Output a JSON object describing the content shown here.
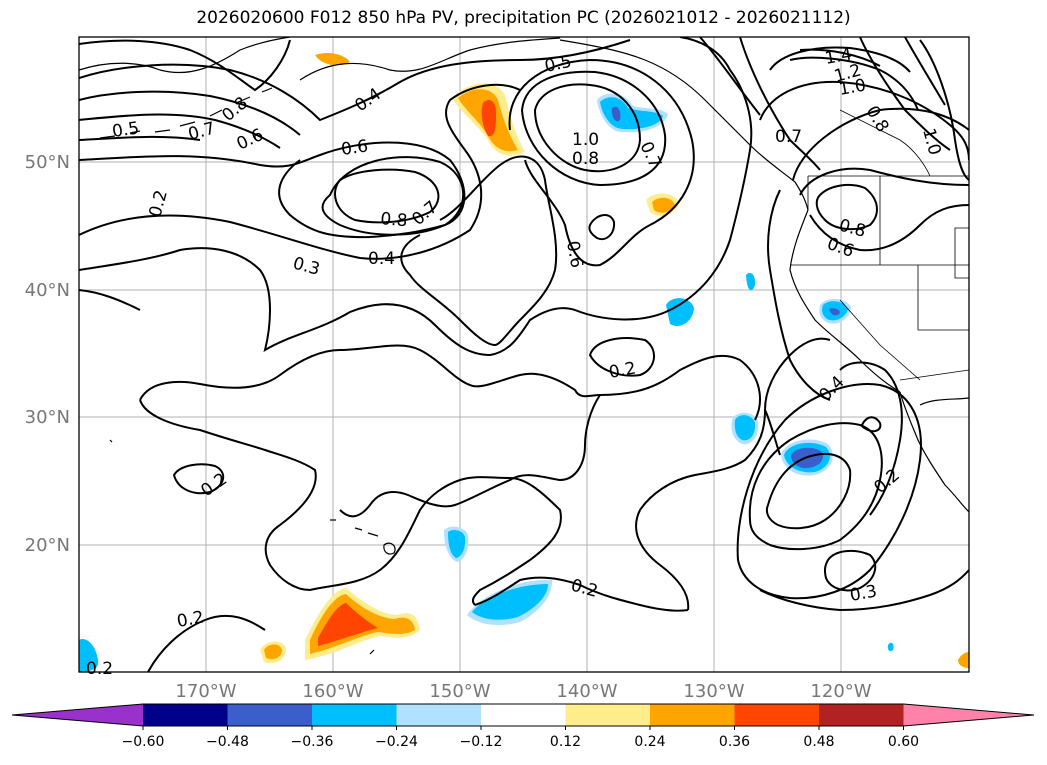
{
  "title": "2026020600 F012 850 hPa PV, precipitation PC (2026021012 - 2026021112)",
  "lat_labels": [
    "50°N",
    "40°N",
    "30°N",
    "20°N"
  ],
  "lon_labels": [
    "170°W",
    "160°W",
    "150°W",
    "140°W",
    "130°W",
    "120°W"
  ],
  "contour_labels": [
    "0.5",
    "0.8",
    "0.7",
    "0.6",
    "0.4",
    "0.5",
    "1.0",
    "0.8",
    "0.7",
    "0.7",
    "1.4",
    "1.2",
    "1.0",
    "0.8",
    "1.0",
    "0.6",
    "0.8",
    "0.7",
    "0.2",
    "0.6",
    "0.8",
    "0.6",
    "0.3",
    "0.4",
    "0.2",
    "0.4",
    "0.2",
    "0.2",
    "0.2",
    "0.2",
    "0.3",
    "0.2"
  ],
  "colorbar": {
    "ticks": [
      "−0.60",
      "−0.48",
      "−0.36",
      "−0.24",
      "−0.12",
      "0.12",
      "0.24",
      "0.36",
      "0.48",
      "0.60"
    ],
    "colors": [
      "#9932CC",
      "#00008B",
      "#3A5FCD",
      "#00BFFF",
      "#B0E2FF",
      "#FFFFFF",
      "#FFEC8B",
      "#FFA500",
      "#FF4500",
      "#B22222",
      "#FF82AB"
    ]
  },
  "colors": {
    "contour": "#000000",
    "grid": "#B0B0B0",
    "axis_label": "#777777"
  }
}
